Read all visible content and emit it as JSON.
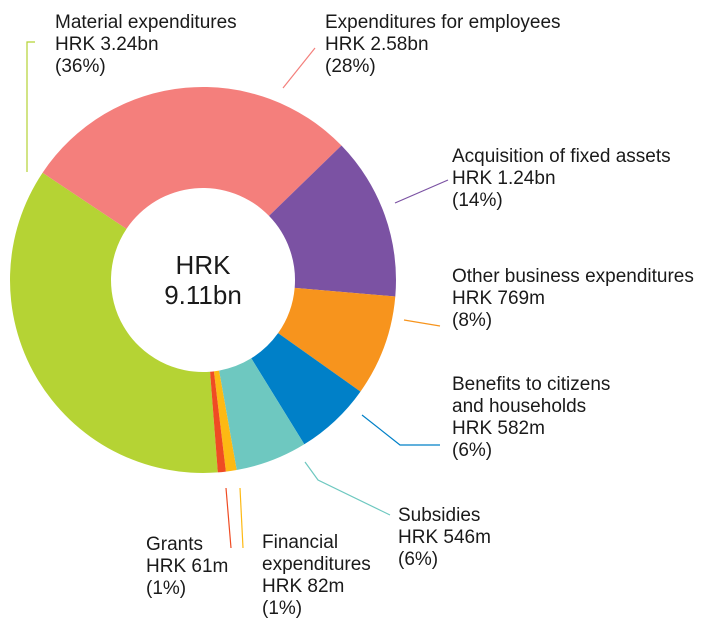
{
  "chart_data": {
    "type": "donut",
    "center_text": [
      "HRK",
      "9.11bn"
    ],
    "categories": [
      "Material expenditures",
      "Expenditures for employees",
      "Acquisition of fixed assets",
      "Other business expenditures",
      "Benefits to citizens and households",
      "Subsidies",
      "Financial expenditures",
      "Grants"
    ],
    "values": [
      3240000000,
      2580000000,
      1240000000,
      769000000,
      582000000,
      546000000,
      82000000,
      61000000
    ],
    "value_labels": [
      "HRK 3.24bn",
      "HRK 2.58bn",
      "HRK 1.24bn",
      "HRK 769m",
      "HRK 582m",
      "HRK 546m",
      "HRK 82m",
      "HRK 61m"
    ],
    "percent_labels": [
      "(36%)",
      "(28%)",
      "(14%)",
      "(8%)",
      "(6%)",
      "(6%)",
      "(1%)",
      "(1%)"
    ],
    "colors": [
      "#b5d334",
      "#f47f7c",
      "#7b52a3",
      "#f7941d",
      "#0080c8",
      "#6ec8c0",
      "#fdb913",
      "#ef4b23"
    ]
  }
}
